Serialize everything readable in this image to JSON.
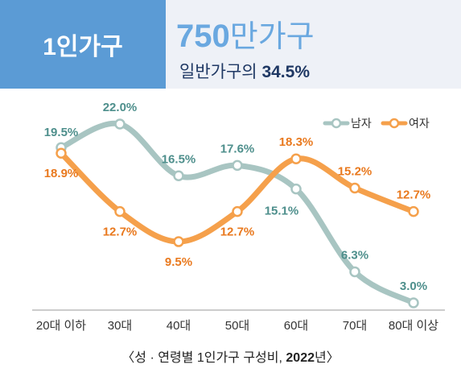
{
  "header": {
    "label": "1인가구",
    "big_number": "750",
    "big_unit": "만가구",
    "sub_text": "일반가구의",
    "sub_pct": "34.5%"
  },
  "caption": {
    "prefix": "〈성 · 연령별 ",
    "mid": "1인가구 구성비, ",
    "year": "2022",
    "suffix": "년〉"
  },
  "chart_data": {
    "type": "line",
    "categories": [
      "20대 이하",
      "30대",
      "40대",
      "50대",
      "60대",
      "70대",
      "80대 이상"
    ],
    "series": [
      {
        "name": "남자",
        "color": "#a8c5c2",
        "label_color": "#4e8f8c",
        "values": [
          19.5,
          22.0,
          16.5,
          17.6,
          15.1,
          6.3,
          3.0
        ],
        "labels": [
          "19.5%",
          "22.0%",
          "16.5%",
          "17.6%",
          "15.1%",
          "6.3%",
          "3.0%"
        ]
      },
      {
        "name": "여자",
        "color": "#f5a04b",
        "label_color": "#e9791e",
        "values": [
          18.9,
          12.7,
          9.5,
          12.7,
          18.3,
          15.2,
          12.7
        ],
        "labels": [
          "18.9%",
          "12.7%",
          "9.5%",
          "12.7%",
          "18.3%",
          "15.2%",
          "12.7%"
        ]
      }
    ],
    "legend_position": "top-right",
    "grid": false
  }
}
